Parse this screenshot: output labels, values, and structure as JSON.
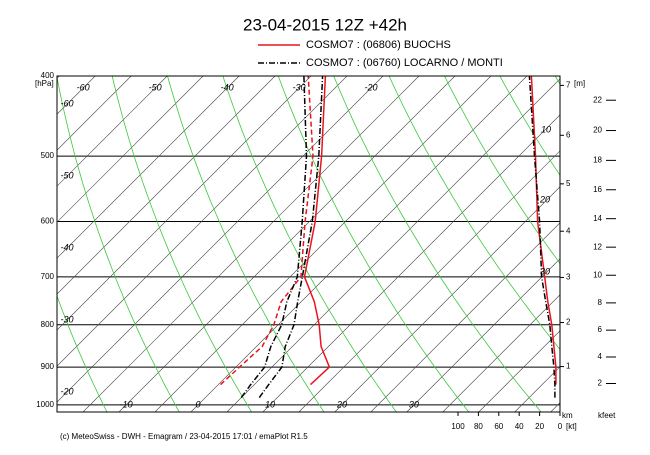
{
  "chart_data": {
    "type": "emagram",
    "title": "23-04-2015  12Z +42h",
    "footer": "(c) MeteoSwiss - DWH - Emagram / 23-04-2015  17:01 / emaPlot R1.5",
    "pressure_unit": "[hPa]",
    "ylim": [
      1020,
      400
    ],
    "log_y": true,
    "yticks": [
      400,
      500,
      600,
      700,
      800,
      900,
      1000
    ],
    "xlim": [
      -19.6,
      50.3
    ],
    "isotherms": [
      -110,
      -105,
      -100,
      -95,
      -90,
      -85,
      -80,
      -75,
      -70,
      -65,
      -60,
      -55,
      -50,
      -45,
      -40,
      -35,
      -30,
      -25,
      -20,
      -15,
      -10,
      -5,
      0,
      5,
      10,
      15,
      20,
      25,
      30,
      35,
      40,
      45,
      50
    ],
    "dry_adiabats": [
      250,
      260,
      270,
      280,
      290,
      300,
      310,
      320,
      330,
      340,
      350,
      360,
      370,
      380,
      390,
      400,
      410,
      420,
      430,
      440
    ],
    "isotherm_labels_bottom": [
      -10,
      0,
      10,
      20,
      30
    ],
    "isotherm_labels_left": [
      -60,
      -50,
      -40,
      -30,
      -20
    ],
    "isotherm_labels_top": [
      -60,
      -50,
      -40,
      -30,
      -20
    ],
    "annotations": [
      "10",
      "20",
      "30"
    ],
    "height_unit": "[m]",
    "height_km_label": "km",
    "height_km_ticks": [
      1,
      2,
      3,
      4,
      5,
      6,
      7
    ],
    "height_kfeet_label": "kfeet",
    "height_kfeet_ticks": [
      2,
      4,
      6,
      8,
      10,
      12,
      14,
      16,
      18,
      20,
      22
    ],
    "wind_xlim": [
      100,
      0
    ],
    "wind_ticks": [
      100,
      80,
      60,
      40,
      20,
      0
    ],
    "wind_unit": "[kt]",
    "pressure": [
      980,
      945,
      900,
      850,
      800,
      750,
      700,
      600,
      500,
      400
    ],
    "series": [
      {
        "name": "COSMO7 : (06806)  BUOCHS",
        "color": "#e8141e",
        "temperature": [
          null,
          12.8,
          13,
          9,
          5.7,
          1.8,
          -3,
          -9.2,
          -17.4,
          -28
        ],
        "dewpoint": [
          null,
          0.3,
          0.5,
          0.8,
          -0.6,
          -2.8,
          -3.5,
          -10.6,
          -18.6,
          -30.4
        ],
        "wind_speed": [
          null,
          4,
          4,
          6,
          8,
          12,
          15,
          22,
          24,
          28
        ]
      },
      {
        "name": "COSMO7 : (06760)  LOCARNO / MONTI",
        "color": "#000000",
        "temperature": [
          7.5,
          7,
          6.4,
          4,
          2.2,
          -0.5,
          -3.3,
          -9.6,
          -17.8,
          -28.4
        ],
        "dewpoint": [
          5,
          4.5,
          4,
          2,
          0.5,
          -2,
          -4,
          -11,
          -19.5,
          -31
        ],
        "wind_speed": [
          5,
          5,
          6,
          8,
          10,
          14,
          18,
          20,
          25,
          30
        ]
      }
    ]
  }
}
